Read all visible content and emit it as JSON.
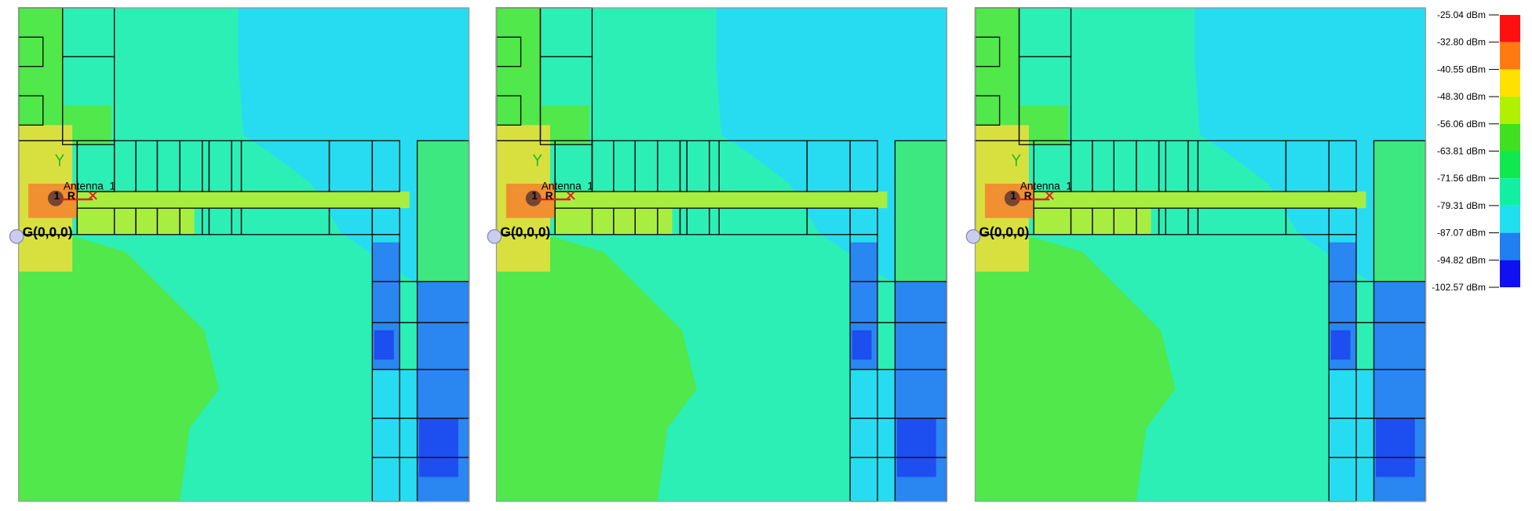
{
  "panels": [
    {
      "antenna": "Antenna_1",
      "origin": "G(0,0,0)",
      "marker": "1",
      "receiver": "R"
    },
    {
      "antenna": "Antenna_1",
      "origin": "G(0,0,0)",
      "marker": "1",
      "receiver": "R"
    },
    {
      "antenna": "Antenna_1",
      "origin": "G(0,0,0)",
      "marker": "1",
      "receiver": "R"
    }
  ],
  "legend": {
    "labels": [
      "-25.04 dBm",
      "-32.80 dBm",
      "-40.55 dBm",
      "-48.30 dBm",
      "-56.06 dBm",
      "-63.81 dBm",
      "-71.56 dBm",
      "-79.31 dBm",
      "-87.07 dBm",
      "-94.82 dBm",
      "-102.57 dBm"
    ],
    "colors": [
      "#ff1010",
      "#ff7a10",
      "#ffe000",
      "#b0f000",
      "#40e020",
      "#10e850",
      "#10f0a0",
      "#20e0f0",
      "#2080f0",
      "#1010f0"
    ]
  }
}
